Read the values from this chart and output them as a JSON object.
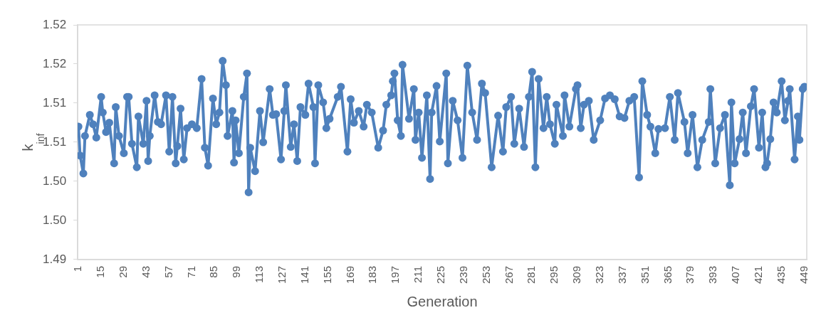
{
  "chart_data": {
    "type": "line",
    "xlabel": "Generation",
    "ylabel": "k$_{inf}$",
    "xlim": [
      0.5,
      450.5
    ],
    "xticks": [
      1,
      15,
      29,
      43,
      57,
      71,
      85,
      99,
      113,
      127,
      141,
      155,
      169,
      183,
      197,
      211,
      225,
      239,
      253,
      267,
      281,
      295,
      309,
      323,
      337,
      351,
      365,
      379,
      393,
      407,
      421,
      435,
      449
    ],
    "ylim": [
      1.49,
      1.52
    ],
    "yticks": [
      {
        "value": 1.49,
        "label": "1.49"
      },
      {
        "value": 1.495,
        "label": "1.50"
      },
      {
        "value": 1.5,
        "label": "1.50"
      },
      {
        "value": 1.505,
        "label": "1.51"
      },
      {
        "value": 1.51,
        "label": "1.51"
      },
      {
        "value": 1.515,
        "label": "1.52"
      },
      {
        "value": 1.52,
        "label": "1.52"
      }
    ],
    "grid": false,
    "legend": false,
    "marker": "circle",
    "line_style": "solid",
    "series": [
      {
        "color": "#4f81bd",
        "x": [
          1,
          2,
          4,
          5,
          8,
          10,
          12,
          15,
          16,
          18,
          20,
          23,
          24,
          26,
          29,
          31,
          32,
          34,
          37,
          38,
          41,
          43,
          44,
          45,
          48,
          50,
          52,
          55,
          57,
          59,
          61,
          62,
          64,
          66,
          68,
          71,
          74,
          77,
          79,
          81,
          84,
          86,
          88,
          90,
          92,
          93,
          96,
          97,
          98,
          100,
          103,
          105,
          106,
          107,
          110,
          113,
          115,
          119,
          121,
          123,
          126,
          128,
          129,
          132,
          134,
          136,
          138,
          141,
          143,
          146,
          147,
          149,
          152,
          154,
          156,
          161,
          163,
          167,
          169,
          171,
          174,
          177,
          179,
          182,
          186,
          189,
          191,
          194,
          195,
          196,
          198,
          200,
          201,
          205,
          208,
          209,
          211,
          213,
          216,
          218,
          219,
          222,
          224,
          228,
          229,
          232,
          235,
          238,
          241,
          244,
          247,
          250,
          252,
          256,
          260,
          263,
          265,
          268,
          270,
          273,
          276,
          279,
          281,
          283,
          285,
          288,
          290,
          292,
          295,
          296,
          300,
          301,
          304,
          308,
          309,
          311,
          313,
          316,
          319,
          323,
          326,
          329,
          332,
          335,
          338,
          341,
          344,
          347,
          349,
          352,
          354,
          357,
          359,
          363,
          366,
          369,
          371,
          375,
          377,
          380,
          383,
          386,
          390,
          391,
          394,
          397,
          400,
          403,
          404,
          406,
          409,
          411,
          413,
          416,
          418,
          421,
          423,
          425,
          426,
          428,
          430,
          432,
          435,
          437,
          439,
          440,
          443,
          445,
          446,
          448,
          449
        ],
        "values": [
          1.507,
          1.5033,
          1.501,
          1.5058,
          1.5085,
          1.5073,
          1.5056,
          1.5108,
          1.5088,
          1.5063,
          1.5075,
          1.5023,
          1.5095,
          1.5058,
          1.5036,
          1.5108,
          1.5108,
          1.5048,
          1.5018,
          1.5083,
          1.5048,
          1.5103,
          1.5026,
          1.5058,
          1.511,
          1.5076,
          1.5073,
          1.511,
          1.5038,
          1.5108,
          1.5023,
          1.5045,
          1.5093,
          1.5028,
          1.5068,
          1.5073,
          1.5068,
          1.5131,
          1.5043,
          1.502,
          1.5106,
          1.5073,
          1.5088,
          1.5154,
          1.5123,
          1.5058,
          1.509,
          1.5024,
          1.5078,
          1.5036,
          1.5108,
          1.5138,
          1.4986,
          1.5043,
          1.5013,
          1.509,
          1.505,
          1.5118,
          1.5085,
          1.5086,
          1.5028,
          1.509,
          1.5123,
          1.5044,
          1.5073,
          1.5026,
          1.5095,
          1.5085,
          1.5125,
          1.5095,
          1.5023,
          1.5123,
          1.5101,
          1.5068,
          1.508,
          1.5108,
          1.5121,
          1.5038,
          1.5105,
          1.5075,
          1.509,
          1.507,
          1.5098,
          1.5088,
          1.5043,
          1.5065,
          1.5098,
          1.511,
          1.5128,
          1.5138,
          1.5078,
          1.5058,
          1.5149,
          1.508,
          1.5118,
          1.5053,
          1.5088,
          1.503,
          1.511,
          1.5003,
          1.5088,
          1.5122,
          1.5051,
          1.5138,
          1.5023,
          1.5103,
          1.5078,
          1.503,
          1.5148,
          1.5088,
          1.5053,
          1.5125,
          1.5113,
          1.5018,
          1.5084,
          1.5038,
          1.5095,
          1.5108,
          1.5048,
          1.5093,
          1.5044,
          1.5108,
          1.514,
          1.5018,
          1.5131,
          1.5068,
          1.5108,
          1.5073,
          1.5048,
          1.5098,
          1.5058,
          1.511,
          1.507,
          1.5118,
          1.5123,
          1.5068,
          1.5098,
          1.5103,
          1.5053,
          1.5078,
          1.5106,
          1.511,
          1.5105,
          1.5083,
          1.5081,
          1.5103,
          1.5108,
          1.5005,
          1.5128,
          1.5085,
          1.507,
          1.5036,
          1.5067,
          1.5068,
          1.5108,
          1.5053,
          1.5113,
          1.5076,
          1.5036,
          1.5085,
          1.5018,
          1.5053,
          1.5076,
          1.5118,
          1.5023,
          1.5068,
          1.5085,
          1.4995,
          1.5101,
          1.5023,
          1.5054,
          1.5088,
          1.5036,
          1.5096,
          1.5118,
          1.5043,
          1.5088,
          1.5018,
          1.5023,
          1.5054,
          1.5101,
          1.5088,
          1.5128,
          1.5078,
          1.5103,
          1.5118,
          1.5028,
          1.5083,
          1.5053,
          1.5118,
          1.5121
        ]
      }
    ]
  }
}
